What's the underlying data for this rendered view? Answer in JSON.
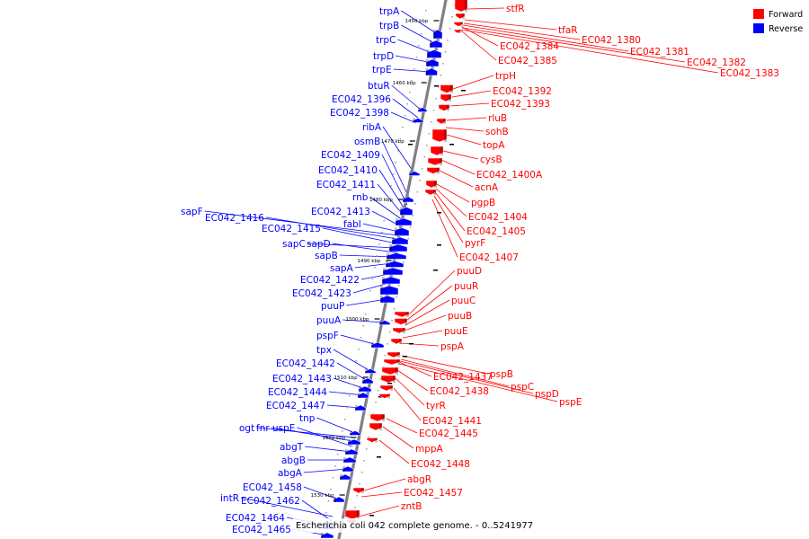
{
  "caption": "Escherichia coli 042 complete genome. - 0..5241977",
  "legend": {
    "forward_label": "Forward",
    "reverse_label": "Reverse",
    "forward_color": "#ff0000",
    "reverse_color": "#0000ff"
  },
  "colors": {
    "axis": "#808080",
    "tick": "#000000"
  },
  "ticks": [
    "1450 kbp",
    "1460 kbp",
    "1470 kbp",
    "1480 kbp",
    "1490 kbp",
    "1500 kbp",
    "1510 kbp",
    "1520 kbp",
    "1530 kbp"
  ],
  "reverse_genes": [
    "trpA",
    "trpB",
    "trpC",
    "trpD",
    "trpE",
    "btuR",
    "EC042_1396",
    "EC042_1398",
    "ribA",
    "osmB",
    "EC042_1409",
    "EC042_1410",
    "EC042_1411",
    "rnb",
    "EC042_1413",
    "fabI",
    "sapF",
    "EC042_1416",
    "EC042_1415",
    "sapC",
    "sapD",
    "sapB",
    "sapA",
    "EC042_1422",
    "EC042_1423",
    "puuP",
    "puuA",
    "pspF",
    "tpx",
    "EC042_1442",
    "EC042_1443",
    "EC042_1444",
    "EC042_1447",
    "tnp",
    "ogt",
    "fnr",
    "uspE",
    "abgT",
    "abgB",
    "abgA",
    "EC042_1458",
    "intR",
    "EC042_1462",
    "EC042_1464",
    "EC042_1465"
  ],
  "forward_genes": [
    "stfR",
    "tfaR",
    "EC042_1384",
    "EC042_1385",
    "EC042_1380",
    "EC042_1381",
    "EC042_1382",
    "EC042_1383",
    "trpH",
    "EC042_1392",
    "EC042_1393",
    "rluB",
    "sohB",
    "topA",
    "cysB",
    "EC042_1400A",
    "acnA",
    "pgpB",
    "EC042_1404",
    "EC042_1405",
    "pyrF",
    "EC042_1407",
    "puuD",
    "puuR",
    "puuC",
    "puuB",
    "puuE",
    "pspA",
    "pspB",
    "EC042_1437",
    "pspC",
    "pspD",
    "EC042_1438",
    "pspE",
    "tyrR",
    "EC042_1441",
    "EC042_1445",
    "mppA",
    "EC042_1448",
    "abgR",
    "EC042_1457",
    "zntB"
  ]
}
